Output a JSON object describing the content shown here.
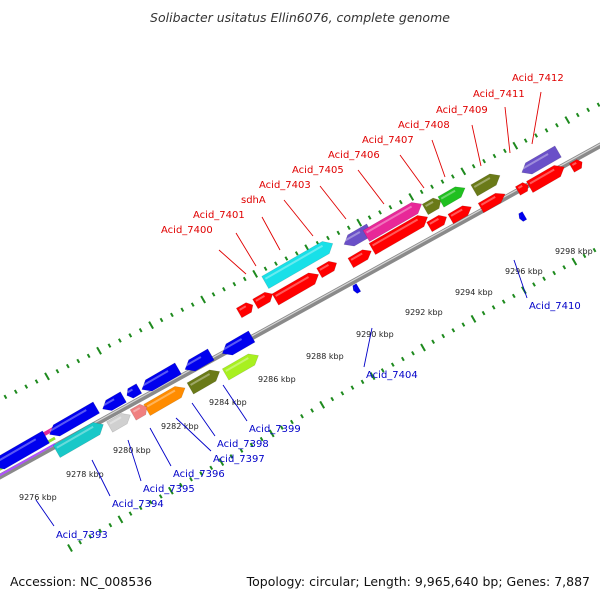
{
  "title": "Solibacter usitatus Ellin6076, complete genome",
  "footer": {
    "accession": "Accession: NC_008536",
    "topology": "Topology: circular; Length: 9,965,640 bp; Genes: 7,887"
  },
  "colors": {
    "forward_label": "#e00000",
    "reverse_label": "#0000c8",
    "forward_default": "#ff0000",
    "reverse_default": "#0000ee",
    "backbone": "#909090",
    "tick": "#1e8a1e"
  },
  "kbp_labels": [
    "9276 kbp",
    "9278 kbp",
    "9280 kbp",
    "9282 kbp",
    "9284 kbp",
    "9286 kbp",
    "9288 kbp",
    "9290 kbp",
    "9292 kbp",
    "9294 kbp",
    "9296 kbp",
    "9298 kbp"
  ],
  "top_labels": [
    "Acid_7400",
    "Acid_7401",
    "sdhA",
    "Acid_7403",
    "Acid_7405",
    "Acid_7406",
    "Acid_7407",
    "Acid_7408",
    "Acid_7409",
    "Acid_7411",
    "Acid_7412"
  ],
  "bottom_labels": [
    "Acid_7393",
    "Acid_7394",
    "Acid_7395",
    "Acid_7396",
    "Acid_7397",
    "Acid_7398",
    "Acid_7399",
    "Acid_7404",
    "Acid_7410"
  ]
}
